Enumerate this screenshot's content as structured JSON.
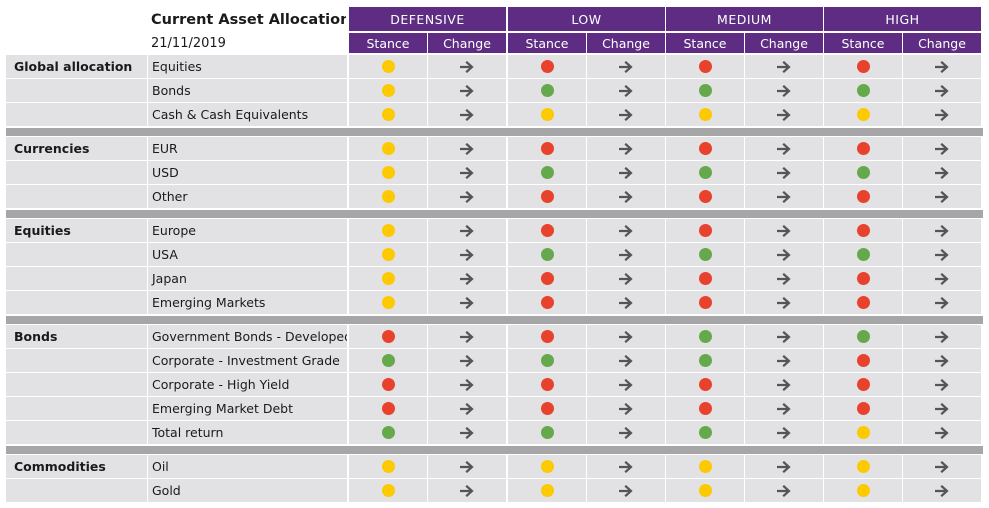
{
  "title": "Current Asset Allocation",
  "date": "21/11/2019",
  "colors": {
    "header": "#5e2d83",
    "red": "#e8412c",
    "green": "#66a94c",
    "amber": "#fdc900",
    "row": "#e2e2e4",
    "separator": "#a6a6a8",
    "arrow": "#555555"
  },
  "profiles": [
    "DEFENSIVE",
    "LOW",
    "MEDIUM",
    "HIGH"
  ],
  "subheaders": {
    "stance": "Stance",
    "change": "Change"
  },
  "change_icon": "arrow-right-icon",
  "groups": [
    {
      "category": "Global allocation",
      "rows": [
        {
          "label": "Equities",
          "stances": [
            "amber",
            "red",
            "red",
            "red"
          ]
        },
        {
          "label": "Bonds",
          "stances": [
            "amber",
            "green",
            "green",
            "green"
          ]
        },
        {
          "label": "Cash & Cash Equivalents",
          "stances": [
            "amber",
            "amber",
            "amber",
            "amber"
          ]
        }
      ]
    },
    {
      "category": "Currencies",
      "rows": [
        {
          "label": "EUR",
          "stances": [
            "amber",
            "red",
            "red",
            "red"
          ]
        },
        {
          "label": "USD",
          "stances": [
            "amber",
            "green",
            "green",
            "green"
          ]
        },
        {
          "label": "Other",
          "stances": [
            "amber",
            "red",
            "red",
            "red"
          ]
        }
      ]
    },
    {
      "category": "Equities",
      "rows": [
        {
          "label": "Europe",
          "stances": [
            "amber",
            "red",
            "red",
            "red"
          ]
        },
        {
          "label": "USA",
          "stances": [
            "amber",
            "green",
            "green",
            "green"
          ]
        },
        {
          "label": "Japan",
          "stances": [
            "amber",
            "red",
            "red",
            "red"
          ]
        },
        {
          "label": "Emerging Markets",
          "stances": [
            "amber",
            "red",
            "red",
            "red"
          ]
        }
      ]
    },
    {
      "category": "Bonds",
      "rows": [
        {
          "label": "Government Bonds - Developed",
          "stances": [
            "red",
            "red",
            "green",
            "green"
          ]
        },
        {
          "label": "Corporate - Investment Grade",
          "stances": [
            "green",
            "green",
            "green",
            "red"
          ]
        },
        {
          "label": "Corporate - High Yield",
          "stances": [
            "red",
            "red",
            "red",
            "red"
          ]
        },
        {
          "label": "Emerging Market Debt",
          "stances": [
            "red",
            "red",
            "red",
            "red"
          ]
        },
        {
          "label": "Total return",
          "stances": [
            "green",
            "green",
            "green",
            "amber"
          ]
        }
      ]
    },
    {
      "category": "Commodities",
      "rows": [
        {
          "label": "Oil",
          "stances": [
            "amber",
            "amber",
            "amber",
            "amber"
          ]
        },
        {
          "label": "Gold",
          "stances": [
            "amber",
            "amber",
            "amber",
            "amber"
          ]
        }
      ]
    }
  ]
}
